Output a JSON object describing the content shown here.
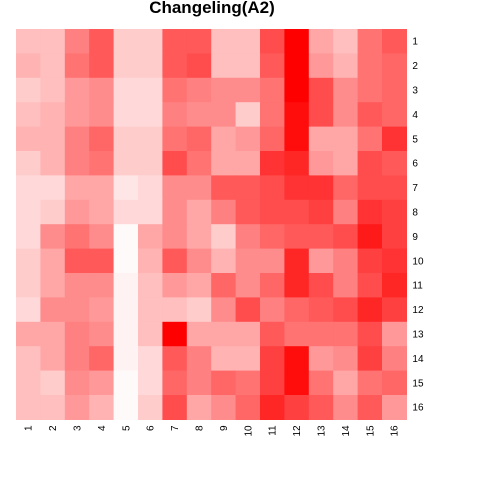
{
  "chart_data": {
    "type": "heatmap",
    "title": "Changeling(A2)",
    "xlabel": "",
    "ylabel": "",
    "x_labels": [
      "1",
      "2",
      "3",
      "4",
      "5",
      "6",
      "7",
      "8",
      "9",
      "10",
      "11",
      "12",
      "13",
      "14",
      "15",
      "16"
    ],
    "y_labels": [
      "1",
      "2",
      "3",
      "4",
      "5",
      "6",
      "7",
      "8",
      "9",
      "10",
      "11",
      "12",
      "13",
      "14",
      "15",
      "16"
    ],
    "color_scale": {
      "low": "#ffffff",
      "high": "#ff0000"
    },
    "legend": "none",
    "grid": false,
    "values": [
      [
        0.25,
        0.25,
        0.5,
        0.65,
        0.2,
        0.2,
        0.65,
        0.65,
        0.25,
        0.25,
        0.7,
        1.0,
        0.35,
        0.25,
        0.55,
        0.65
      ],
      [
        0.3,
        0.25,
        0.55,
        0.65,
        0.2,
        0.2,
        0.65,
        0.7,
        0.25,
        0.25,
        0.65,
        1.0,
        0.4,
        0.3,
        0.55,
        0.6
      ],
      [
        0.2,
        0.25,
        0.4,
        0.45,
        0.15,
        0.15,
        0.55,
        0.5,
        0.45,
        0.45,
        0.55,
        1.0,
        0.7,
        0.45,
        0.55,
        0.6
      ],
      [
        0.25,
        0.3,
        0.4,
        0.45,
        0.15,
        0.15,
        0.5,
        0.45,
        0.45,
        0.2,
        0.55,
        0.95,
        0.7,
        0.45,
        0.65,
        0.6
      ],
      [
        0.3,
        0.3,
        0.5,
        0.6,
        0.2,
        0.2,
        0.55,
        0.6,
        0.35,
        0.4,
        0.6,
        0.95,
        0.35,
        0.35,
        0.55,
        0.8
      ],
      [
        0.2,
        0.3,
        0.5,
        0.55,
        0.2,
        0.2,
        0.7,
        0.55,
        0.35,
        0.35,
        0.8,
        0.85,
        0.4,
        0.35,
        0.7,
        0.65
      ],
      [
        0.15,
        0.15,
        0.35,
        0.35,
        0.1,
        0.15,
        0.45,
        0.45,
        0.65,
        0.65,
        0.7,
        0.8,
        0.8,
        0.6,
        0.7,
        0.7
      ],
      [
        0.15,
        0.2,
        0.4,
        0.35,
        0.15,
        0.15,
        0.45,
        0.35,
        0.5,
        0.65,
        0.7,
        0.7,
        0.75,
        0.5,
        0.8,
        0.75
      ],
      [
        0.15,
        0.45,
        0.55,
        0.45,
        0.02,
        0.35,
        0.45,
        0.35,
        0.2,
        0.5,
        0.6,
        0.65,
        0.65,
        0.7,
        0.9,
        0.75
      ],
      [
        0.2,
        0.35,
        0.65,
        0.65,
        0.02,
        0.3,
        0.65,
        0.45,
        0.3,
        0.45,
        0.45,
        0.85,
        0.4,
        0.5,
        0.75,
        0.8
      ],
      [
        0.2,
        0.35,
        0.45,
        0.45,
        0.05,
        0.25,
        0.4,
        0.35,
        0.6,
        0.45,
        0.6,
        0.85,
        0.7,
        0.5,
        0.7,
        0.85
      ],
      [
        0.15,
        0.45,
        0.45,
        0.4,
        0.05,
        0.25,
        0.25,
        0.2,
        0.45,
        0.7,
        0.5,
        0.6,
        0.65,
        0.7,
        0.85,
        0.75
      ],
      [
        0.35,
        0.35,
        0.5,
        0.45,
        0.05,
        0.25,
        1.0,
        0.35,
        0.35,
        0.35,
        0.65,
        0.55,
        0.55,
        0.55,
        0.7,
        0.4
      ],
      [
        0.25,
        0.35,
        0.5,
        0.6,
        0.05,
        0.15,
        0.65,
        0.5,
        0.3,
        0.3,
        0.75,
        0.95,
        0.4,
        0.45,
        0.75,
        0.5
      ],
      [
        0.25,
        0.2,
        0.45,
        0.4,
        0.02,
        0.15,
        0.6,
        0.5,
        0.6,
        0.55,
        0.75,
        0.95,
        0.55,
        0.35,
        0.55,
        0.6
      ],
      [
        0.25,
        0.25,
        0.4,
        0.3,
        0.02,
        0.2,
        0.7,
        0.35,
        0.45,
        0.6,
        0.85,
        0.75,
        0.65,
        0.45,
        0.65,
        0.4
      ]
    ]
  }
}
